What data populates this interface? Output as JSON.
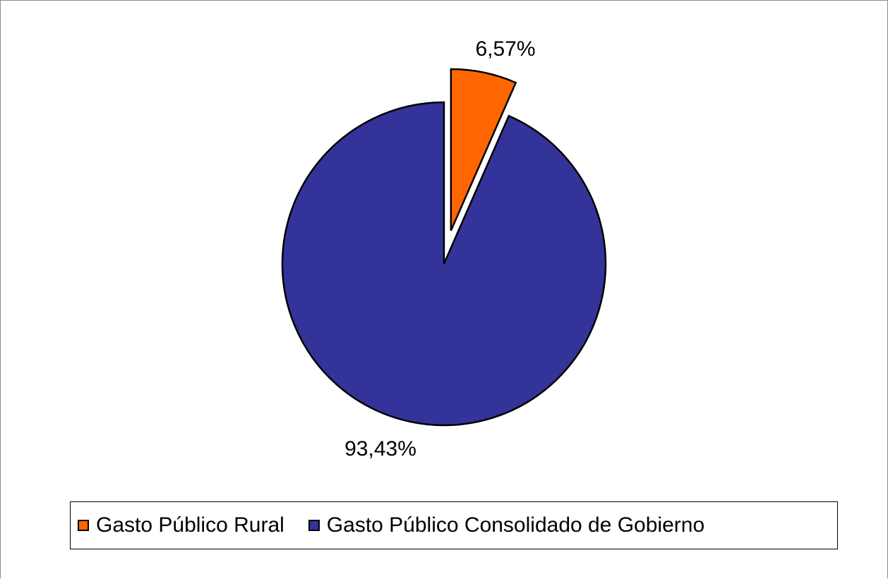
{
  "chart_data": {
    "type": "pie",
    "title": "",
    "slices": [
      {
        "name": "Gasto Público Rural",
        "value": 6.57,
        "label": "6,57%",
        "color": "#ff6600",
        "exploded": true
      },
      {
        "name": "Gasto Público Consolidado de Gobierno",
        "value": 93.43,
        "label": "93,43%",
        "color": "#333399",
        "exploded": false
      }
    ],
    "start_angle": "12 o'clock",
    "direction": "clockwise",
    "legend": {
      "position": "bottom"
    }
  }
}
